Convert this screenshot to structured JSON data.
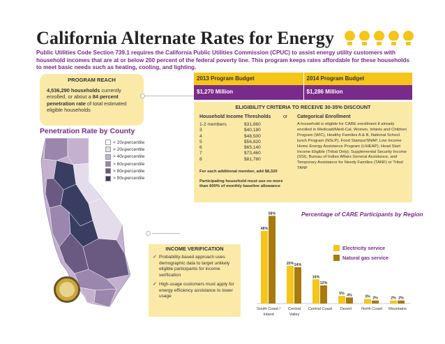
{
  "title": "California Alternate Rates for Energy",
  "intro": "Public Utilities Code Section 739.1 requires the California Public Utilities Commission (CPUC) to assist energy utility customers with household incomes that are at or below 200 percent of the federal poverty line.  This program keeps rates affordable for these households to meet basic needs such as heating, cooling, and lighting.",
  "program_reach": {
    "heading": "PROGRAM REACH",
    "households": "4,536,290 households",
    "text1": " currently enrolled, or about a ",
    "rate": "84 percent penetration rate",
    "text2": " of total estimated eligible households"
  },
  "budget": {
    "year1_label": "2013 Program Budget",
    "year2_label": "2014 Program Budget",
    "year1_value": "$1,270 Million",
    "year2_value": "$1,286 Million"
  },
  "eligibility": {
    "heading": "ELIGIBILITY CRITERIA TO RECEIVE 30-35% DISCOUNT",
    "thresholds_heading": "Household Income Thresholds",
    "or": "or",
    "categorical_heading": "Categorical Enrollment",
    "thresholds": [
      {
        "members": "1-2 members",
        "amount": "$31,860"
      },
      {
        "members": "3",
        "amount": "$40,180"
      },
      {
        "members": "4",
        "amount": "$48,500"
      },
      {
        "members": "5",
        "amount": "$56,820"
      },
      {
        "members": "6",
        "amount": "$65,140"
      },
      {
        "members": "7",
        "amount": "$73,460"
      },
      {
        "members": "8",
        "amount": "$81,780"
      }
    ],
    "additional_note": "For each additional member, add $8,320",
    "baseline_note": "Participating household must use no more than 600% of monthly baseline allowance",
    "categorical_text": "A household is eligible for CARE enrollment if already enrolled in Medicaid/Medi-Cal, Women, Infants and Children Program (WIC), Healthy Families A & B, National School lunch Program (NSLP), Food Stamps/SNAP, Low Income Home Energy Assistance Program (LIHEAP), Head Start Income Eligible (Tribal Only); Supplemental Security Income (SSI), Bureau of Indian Affairs General Assistance, and Temporary Assistance for Needy Families (TANF) or Tribal TANF"
  },
  "map": {
    "title": "Penetration Rate by County",
    "legend": [
      {
        "prefix": "< 20",
        "sup": "th",
        "suffix": " percentile",
        "color": "#ffffff"
      },
      {
        "prefix": "> 20",
        "sup": "th",
        "suffix": " percentile",
        "color": "#e4dcea"
      },
      {
        "prefix": "> 40",
        "sup": "th",
        "suffix": " percentile",
        "color": "#c3b1cf"
      },
      {
        "prefix": "> 60",
        "sup": "th",
        "suffix": " percentile",
        "color": "#9b86ad"
      },
      {
        "prefix": "> 80",
        "sup": "th",
        "suffix": " percentile",
        "color": "#6a5a82"
      },
      {
        "prefix": "> 90",
        "sup": "th",
        "suffix": " percentile",
        "color": "#3a3d62"
      }
    ]
  },
  "income_verification": {
    "heading": "INCOME VERIFICATION",
    "items": [
      "Probability-based approach uses demographic data to target unlikely eligible participants for income verification",
      "High-usage customers must apply for energy efficiency assistance to lower usage"
    ]
  },
  "chart_data": {
    "type": "bar",
    "title": "Percentage of CARE Participants by Region",
    "categories": [
      "South Coast / Inland",
      "Central Valley",
      "Central Coast",
      "Desert",
      "North Coast",
      "Mountains"
    ],
    "series": [
      {
        "name": "Electricity service",
        "color": "#f5c51a",
        "values": [
          48,
          25,
          16,
          5,
          3,
          2
        ],
        "labels": [
          "48%",
          "25%",
          "16%",
          "5%",
          "3%",
          "2%"
        ]
      },
      {
        "name": "Natural gas service",
        "color": "#a97a0c",
        "values": [
          58,
          24,
          12,
          4,
          2,
          2
        ],
        "labels": [
          "58%",
          "24%",
          "12%",
          "4%",
          "2%",
          "2%"
        ]
      }
    ],
    "ylim": [
      0,
      60
    ],
    "legend": "right"
  }
}
